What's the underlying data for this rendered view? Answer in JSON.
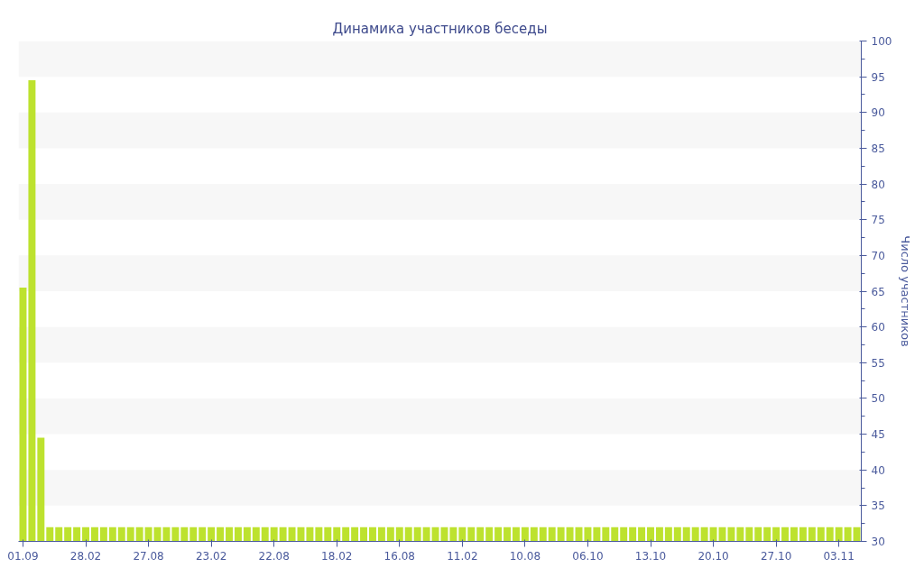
{
  "chart_data": {
    "type": "bar",
    "title": "Динамика участников беседы",
    "ylabel": "Число участников",
    "categories": [
      "01.09",
      null,
      null,
      null,
      null,
      null,
      null,
      "28.02",
      null,
      null,
      null,
      null,
      null,
      null,
      "27.08",
      null,
      null,
      null,
      null,
      null,
      null,
      "23.02",
      null,
      null,
      null,
      null,
      null,
      null,
      "22.08",
      null,
      null,
      null,
      null,
      null,
      null,
      "18.02",
      null,
      null,
      null,
      null,
      null,
      null,
      "16.08",
      null,
      null,
      null,
      null,
      null,
      null,
      "11.02",
      null,
      null,
      null,
      null,
      null,
      null,
      "10.08",
      null,
      null,
      null,
      null,
      null,
      null,
      "06.10",
      null,
      null,
      null,
      null,
      null,
      null,
      "13.10",
      null,
      null,
      null,
      null,
      null,
      null,
      "20.10",
      null,
      null,
      null,
      null,
      null,
      null,
      "27.10",
      null,
      null,
      null,
      null,
      null,
      null,
      "03.11",
      null,
      null
    ],
    "values": [
      65.5,
      94.5,
      44.5,
      32,
      32,
      32,
      32,
      32,
      32,
      32,
      32,
      32,
      32,
      32,
      32,
      32,
      32,
      32,
      32,
      32,
      32,
      32,
      32,
      32,
      32,
      32,
      32,
      32,
      32,
      32,
      32,
      32,
      32,
      32,
      32,
      32,
      32,
      32,
      32,
      32,
      32,
      32,
      32,
      32,
      32,
      32,
      32,
      32,
      32,
      32,
      32,
      32,
      32,
      32,
      32,
      32,
      32,
      32,
      32,
      32,
      32,
      32,
      32,
      32,
      32,
      32,
      32,
      32,
      32,
      32,
      32,
      32,
      32,
      32,
      32,
      32,
      32,
      32,
      32,
      32,
      32,
      32,
      32,
      32,
      32,
      32,
      32,
      32,
      32,
      32,
      32,
      32,
      32,
      32
    ],
    "color": "#bde22e",
    "ylim": [
      30,
      100
    ],
    "yticks": [
      30,
      35,
      40,
      45,
      50,
      55,
      60,
      65,
      70,
      75,
      80,
      85,
      90,
      95,
      100
    ],
    "bands": [
      {
        "axis": "y",
        "from": 35,
        "to": 40,
        "color": "#f7f7f7"
      },
      {
        "axis": "y",
        "from": 45,
        "to": 50,
        "color": "#f7f7f7"
      },
      {
        "axis": "y",
        "from": 55,
        "to": 60,
        "color": "#f7f7f7"
      },
      {
        "axis": "y",
        "from": 65,
        "to": 70,
        "color": "#f7f7f7"
      },
      {
        "axis": "y",
        "from": 75,
        "to": 80,
        "color": "#f7f7f7"
      },
      {
        "axis": "y",
        "from": 85,
        "to": 90,
        "color": "#f7f7f7"
      },
      {
        "axis": "y",
        "from": 95,
        "to": 100,
        "color": "#f7f7f7"
      }
    ],
    "grid": false
  }
}
